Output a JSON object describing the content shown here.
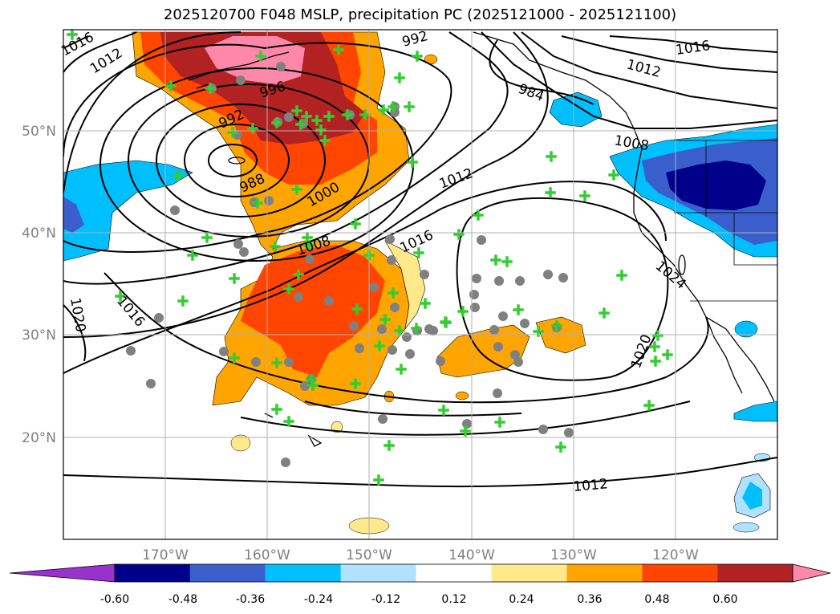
{
  "title": "2025120700 F048 MSLP, precipitation PC (2025121000 - 2025121100)",
  "map": {
    "lat_ticks": [
      "50°N",
      "40°N",
      "30°N",
      "20°N"
    ],
    "lon_ticks": [
      "170°W",
      "160°W",
      "150°W",
      "140°W",
      "130°W",
      "120°W"
    ],
    "isobar_labels": [
      {
        "text": "1016",
        "region": "top-left corner"
      },
      {
        "text": "1012",
        "region": "upper left"
      },
      {
        "text": "992",
        "region": "upper center"
      },
      {
        "text": "996",
        "region": "upper left center"
      },
      {
        "text": "992",
        "region": "left center"
      },
      {
        "text": "988",
        "region": "left center"
      },
      {
        "text": "1000",
        "region": "center-left"
      },
      {
        "text": "1012",
        "region": "center"
      },
      {
        "text": "1016",
        "region": "center"
      },
      {
        "text": "1008",
        "region": "center-left"
      },
      {
        "text": "1016",
        "region": "lower left"
      },
      {
        "text": "1020",
        "region": "far lower left"
      },
      {
        "text": "1012",
        "region": "bottom center"
      },
      {
        "text": "1016",
        "region": "top right"
      },
      {
        "text": "1012",
        "region": "top right"
      },
      {
        "text": "984",
        "region": "upper right"
      },
      {
        "text": "1024",
        "region": "right center"
      },
      {
        "text": "1020",
        "region": "lower right"
      },
      {
        "text": "1008",
        "region": "upper right"
      }
    ],
    "colors": {
      "pos_1": "#ffe98a",
      "pos_2": "#ffa500",
      "pos_3": "#ff4500",
      "pos_4": "#b22222",
      "pos_5": "#ff88aa",
      "neg_1": "#b0e2ff",
      "neg_2": "#00bfff",
      "neg_3": "#3a5fcd",
      "neg_4": "#00008b",
      "neg_5": "#9932cc",
      "marker": "#32cd32",
      "dot": "#808080",
      "grid": "#b0b0b0",
      "contour": "#000000"
    }
  },
  "colorbar": {
    "ticks": [
      "-0.60",
      "-0.48",
      "-0.36",
      "-0.24",
      "-0.12",
      "0.12",
      "0.24",
      "0.36",
      "0.48",
      "0.60"
    ],
    "colors": [
      "#9932cc",
      "#00008b",
      "#3a5fcd",
      "#00bfff",
      "#b0e2ff",
      "#ffffff",
      "#ffe98a",
      "#ffa500",
      "#ff4500",
      "#b22222",
      "#ff88aa"
    ]
  }
}
